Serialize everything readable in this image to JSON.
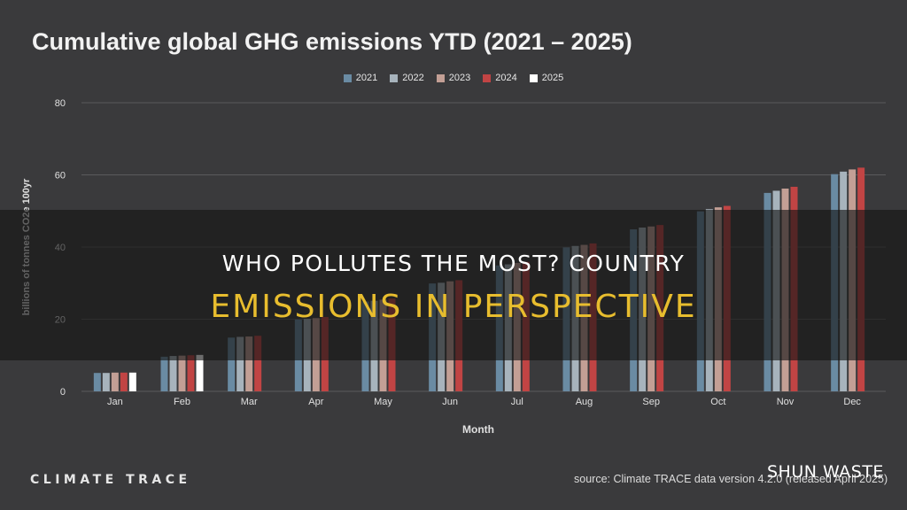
{
  "colors": {
    "background": "#3a3a3c",
    "grid": "#5a5a5c",
    "axis_text": "#e0e0e0",
    "banner_title": "#ffffff",
    "banner_subtitle": "#e8bd2e"
  },
  "banner": {
    "line1": "WHO POLLUTES THE MOST? COUNTRY",
    "line2": "EMISSIONS IN PERSPECTIVE"
  },
  "footer": {
    "brand": "CLIMATE TRACE",
    "source": "source: Climate TRACE data version 4.2.0 (released April 2025)"
  },
  "watermark": "SHUN WASTE",
  "chart_data": {
    "type": "bar",
    "title": "Cumulative global GHG emissions YTD (2021 – 2025)",
    "xlabel": "Month",
    "ylabel": "billions of tonnes CO2e 100yr",
    "ylim": [
      0,
      80
    ],
    "yticks": [
      0,
      20,
      40,
      60,
      80
    ],
    "grid": true,
    "legend_position": "top-center",
    "categories": [
      "Jan",
      "Feb",
      "Mar",
      "Apr",
      "May",
      "Jun",
      "Jul",
      "Aug",
      "Sep",
      "Oct",
      "Nov",
      "Dec"
    ],
    "series": [
      {
        "name": "2021",
        "color": "#6a8ba3",
        "values": [
          5.1,
          9.6,
          14.9,
          19.9,
          24.9,
          29.9,
          34.9,
          39.9,
          44.9,
          49.9,
          55.0,
          60.2
        ]
      },
      {
        "name": "2022",
        "color": "#a7b3bc",
        "values": [
          5.1,
          9.8,
          15.1,
          20.1,
          25.1,
          30.1,
          35.2,
          40.3,
          45.4,
          50.5,
          55.6,
          60.9
        ]
      },
      {
        "name": "2023",
        "color": "#c39f95",
        "values": [
          5.2,
          9.9,
          15.2,
          20.3,
          25.4,
          30.5,
          35.6,
          40.6,
          45.7,
          51.0,
          56.2,
          61.5
        ]
      },
      {
        "name": "2024",
        "color": "#c14444",
        "values": [
          5.2,
          10.0,
          15.4,
          20.6,
          25.7,
          30.8,
          35.9,
          41.0,
          46.1,
          51.4,
          56.7,
          62.0
        ]
      },
      {
        "name": "2025",
        "color": "#ffffff",
        "values": [
          5.2,
          10.1,
          null,
          null,
          null,
          null,
          null,
          null,
          null,
          null,
          null,
          null
        ]
      }
    ]
  }
}
